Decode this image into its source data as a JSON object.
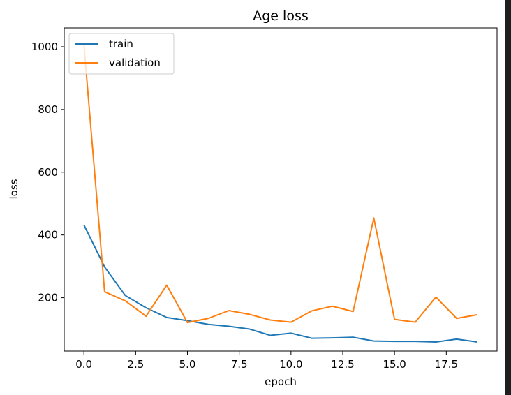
{
  "chart_data": {
    "type": "line",
    "title": "Age loss",
    "xlabel": "epoch",
    "ylabel": "loss",
    "xlim": [
      -0.95,
      19.95
    ],
    "ylim": [
      30,
      1060
    ],
    "xticks": [
      0.0,
      2.5,
      5.0,
      7.5,
      10.0,
      12.5,
      15.0,
      17.5
    ],
    "xtick_labels": [
      "0.0",
      "2.5",
      "5.0",
      "7.5",
      "10.0",
      "12.5",
      "15.0",
      "17.5"
    ],
    "yticks": [
      200,
      400,
      600,
      800,
      1000
    ],
    "ytick_labels": [
      "200",
      "400",
      "600",
      "800",
      "1000"
    ],
    "grid": false,
    "legend_position": "top-left",
    "x": [
      0,
      1,
      2,
      3,
      4,
      5,
      6,
      7,
      8,
      9,
      10,
      11,
      12,
      13,
      14,
      15,
      16,
      17,
      18,
      19
    ],
    "series": [
      {
        "name": "train",
        "color": "#1f77b4",
        "values": [
          432,
          298,
          207,
          168,
          137,
          127,
          115,
          109,
          100,
          80,
          87,
          71,
          72,
          74,
          62,
          61,
          61,
          59,
          68,
          59
        ]
      },
      {
        "name": "validation",
        "color": "#ff7f0e",
        "values": [
          1007,
          219,
          190,
          141,
          240,
          121,
          134,
          159,
          147,
          129,
          122,
          158,
          173,
          156,
          454,
          131,
          122,
          202,
          134,
          146
        ]
      }
    ]
  }
}
